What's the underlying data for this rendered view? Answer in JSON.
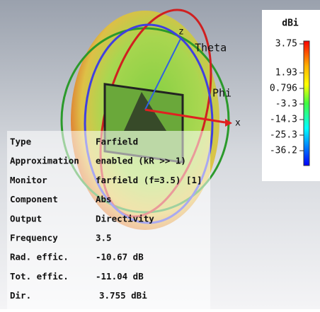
{
  "scene": {
    "axes": [
      "z",
      "Theta",
      "Phi",
      "x"
    ]
  },
  "colorbar": {
    "unit": "dBi",
    "labels": [
      "3.75",
      "1.93",
      "0.796",
      "-3.3",
      "-14.3",
      "-25.3",
      "-36.2"
    ]
  },
  "table": {
    "rows": [
      [
        "Type",
        "Farfield"
      ],
      [
        "Approximation",
        "enabled (kR >> 1)"
      ],
      [
        "Monitor",
        "farfield (f=3.5) [1]"
      ],
      [
        "Component",
        "Abs"
      ],
      [
        "Output",
        "Directivity"
      ],
      [
        "Frequency",
        "3.5"
      ],
      [
        "Rad. effic.",
        "-10.67 dB"
      ],
      [
        "Tot. effic.",
        "-11.04 dB"
      ],
      [
        "Dir.",
        "3.755 dBi"
      ]
    ]
  }
}
